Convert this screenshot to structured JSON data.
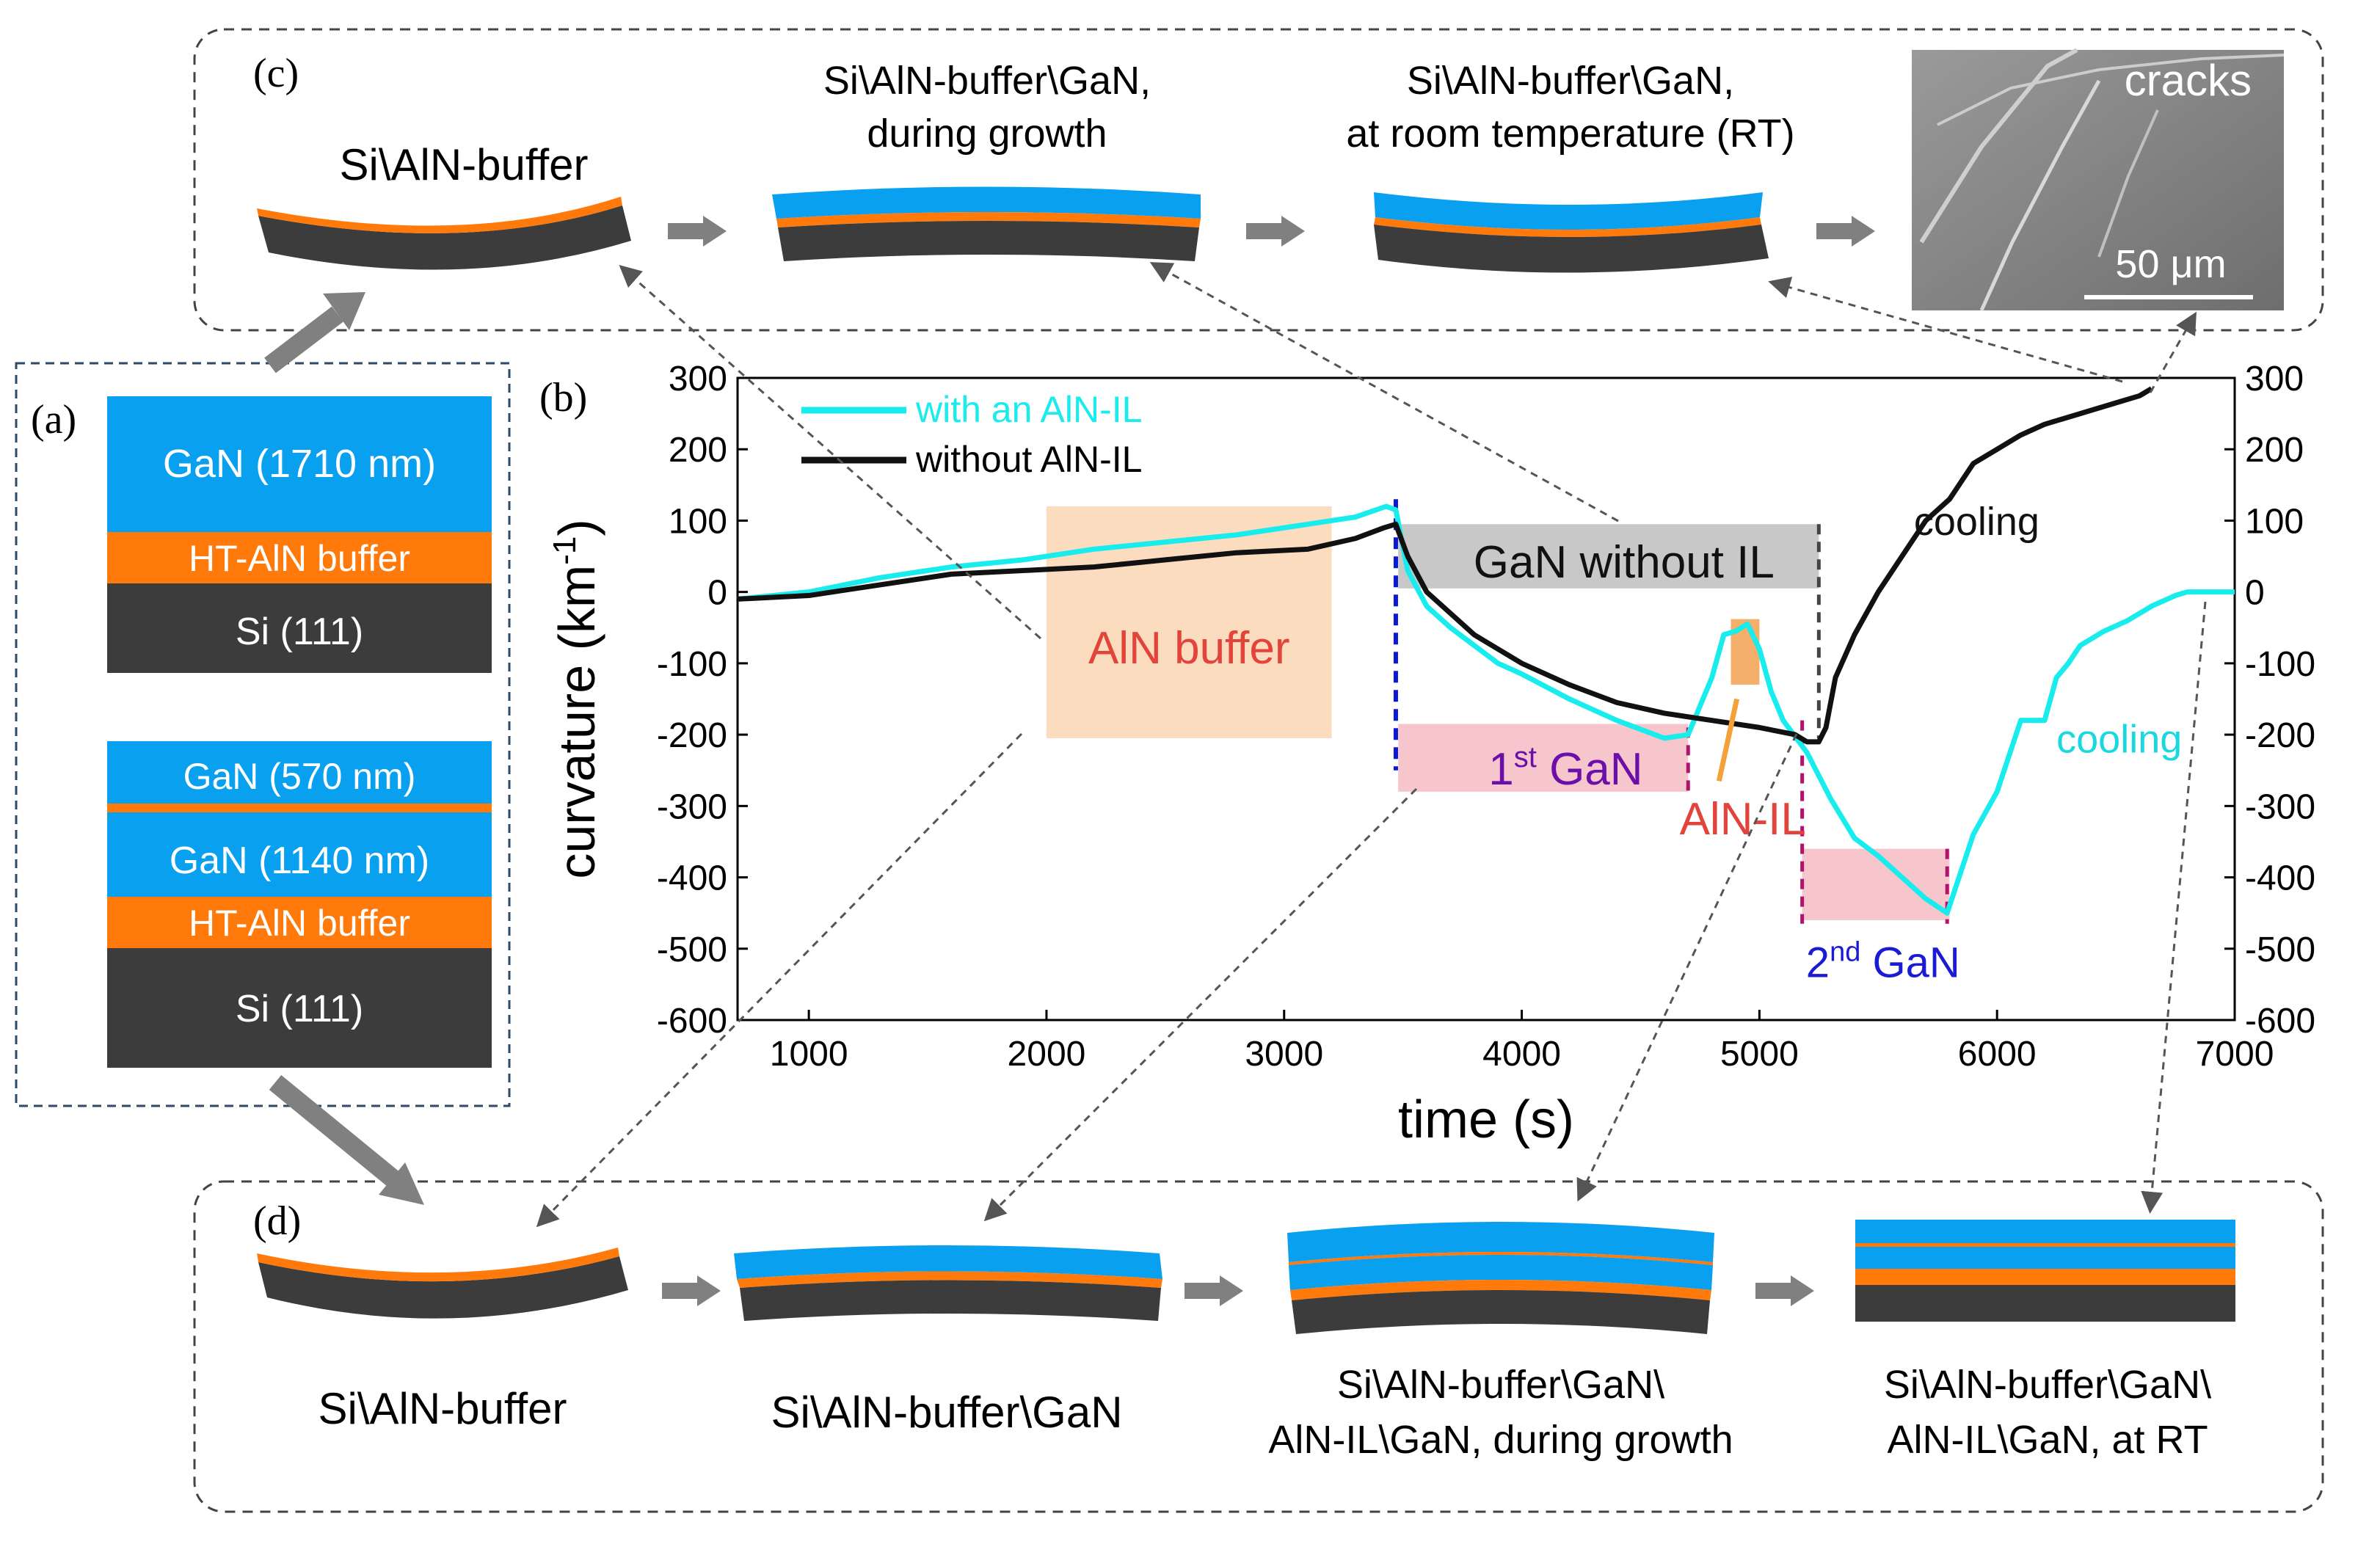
{
  "panel_labels": {
    "a": "(a)",
    "b": "(b)",
    "c": "(c)",
    "d": "(d)"
  },
  "colors": {
    "gan": "#0aa0f0",
    "aln": "#ff7a0a",
    "si": "#3c3c3c",
    "cyan": "#19ecec",
    "black": "#111111",
    "arrow": "#808080",
    "aln_buffer_box": "#fbd6b4",
    "gan_box": "#c8c8c8",
    "first_gan_box": "#f7c6cc"
  },
  "stack1": {
    "gan": "GaN (1710 nm)",
    "aln": "HT-AlN buffer",
    "si": "Si (111)"
  },
  "stack2": {
    "gan_top": "GaN (570 nm)",
    "gan_mid": "GaN (1140 nm)",
    "aln": "HT-AlN buffer",
    "si": "Si (111)"
  },
  "panel_c": {
    "step1": "Si\\AlN-buffer",
    "step2_line1": "Si\\AlN-buffer\\GaN,",
    "step2_line2": "during growth",
    "step3_line1": "Si\\AlN-buffer\\GaN,",
    "step3_line2": "at room temperature (RT)",
    "photo_label": "cracks",
    "scale_bar": "50 μm"
  },
  "panel_d": {
    "step1": "Si\\AlN-buffer",
    "step2": "Si\\AlN-buffer\\GaN",
    "step3_line1": "Si\\AlN-buffer\\GaN\\",
    "step3_line2": "AlN-IL\\GaN, during growth",
    "step4_line1": "Si\\AlN-buffer\\GaN\\",
    "step4_line2": "AlN-IL\\GaN, at RT"
  },
  "chart_data": {
    "type": "line",
    "xlabel": "time (s)",
    "ylabel": "curvature (km",
    "ylabel_sup": "-1",
    "ylabel_close": ")",
    "xlim": [
      700,
      7000
    ],
    "ylim": [
      -600,
      300
    ],
    "xticks": [
      1000,
      2000,
      3000,
      4000,
      5000,
      6000,
      7000
    ],
    "yticks": [
      -600,
      -500,
      -400,
      -300,
      -200,
      -100,
      0,
      100,
      200,
      300
    ],
    "legend": [
      "with an AlN-IL",
      "without AlN-IL"
    ],
    "series": [
      {
        "name": "with an AlN-IL",
        "color": "#19ecec",
        "x": [
          700,
          1000,
          1300,
          1600,
          1900,
          2200,
          2500,
          2800,
          3100,
          3300,
          3430,
          3470,
          3520,
          3600,
          3700,
          3800,
          3900,
          4000,
          4200,
          4400,
          4600,
          4700,
          4800,
          4850,
          4900,
          4950,
          5000,
          5050,
          5100,
          5200,
          5300,
          5400,
          5500,
          5600,
          5700,
          5790,
          5820,
          5900,
          6000,
          6100,
          6200,
          6250,
          6300,
          6350,
          6450,
          6550,
          6650,
          6750,
          6800,
          7000
        ],
        "y": [
          -10,
          0,
          20,
          35,
          45,
          60,
          70,
          80,
          95,
          105,
          120,
          115,
          30,
          -20,
          -50,
          -75,
          -100,
          -115,
          -150,
          -180,
          -205,
          -200,
          -120,
          -60,
          -55,
          -45,
          -80,
          -140,
          -180,
          -225,
          -290,
          -345,
          -370,
          -400,
          -430,
          -450,
          -420,
          -340,
          -280,
          -180,
          -180,
          -120,
          -100,
          -75,
          -55,
          -40,
          -20,
          -5,
          0,
          0
        ]
      },
      {
        "name": "without AlN-IL",
        "color": "#111111",
        "x": [
          700,
          1000,
          1300,
          1600,
          1900,
          2200,
          2500,
          2800,
          3100,
          3300,
          3420,
          3470,
          3520,
          3600,
          3700,
          3800,
          3900,
          4000,
          4200,
          4400,
          4600,
          4800,
          5000,
          5150,
          5200,
          5250,
          5280,
          5320,
          5400,
          5500,
          5600,
          5700,
          5800,
          5900,
          6000,
          6100,
          6200,
          6300,
          6400,
          6500,
          6600,
          6650
        ],
        "y": [
          -10,
          -5,
          10,
          25,
          30,
          35,
          45,
          55,
          60,
          75,
          90,
          95,
          50,
          0,
          -30,
          -60,
          -80,
          -100,
          -130,
          -155,
          -170,
          -180,
          -190,
          -200,
          -210,
          -210,
          -190,
          -120,
          -60,
          0,
          50,
          100,
          130,
          180,
          200,
          220,
          235,
          245,
          255,
          265,
          275,
          285
        ]
      }
    ],
    "annotations": {
      "aln_buffer": "AlN buffer",
      "gan_without_il": "GaN without IL",
      "first_gan_num": "1",
      "first_gan_sup": "st",
      "first_gan_text": " GaN",
      "aln_il": "AlN-IL",
      "second_gan_num": "2",
      "second_gan_sup": "nd",
      "second_gan_text": " GaN",
      "cooling_black": "cooling",
      "cooling_cyan": "cooling"
    }
  }
}
